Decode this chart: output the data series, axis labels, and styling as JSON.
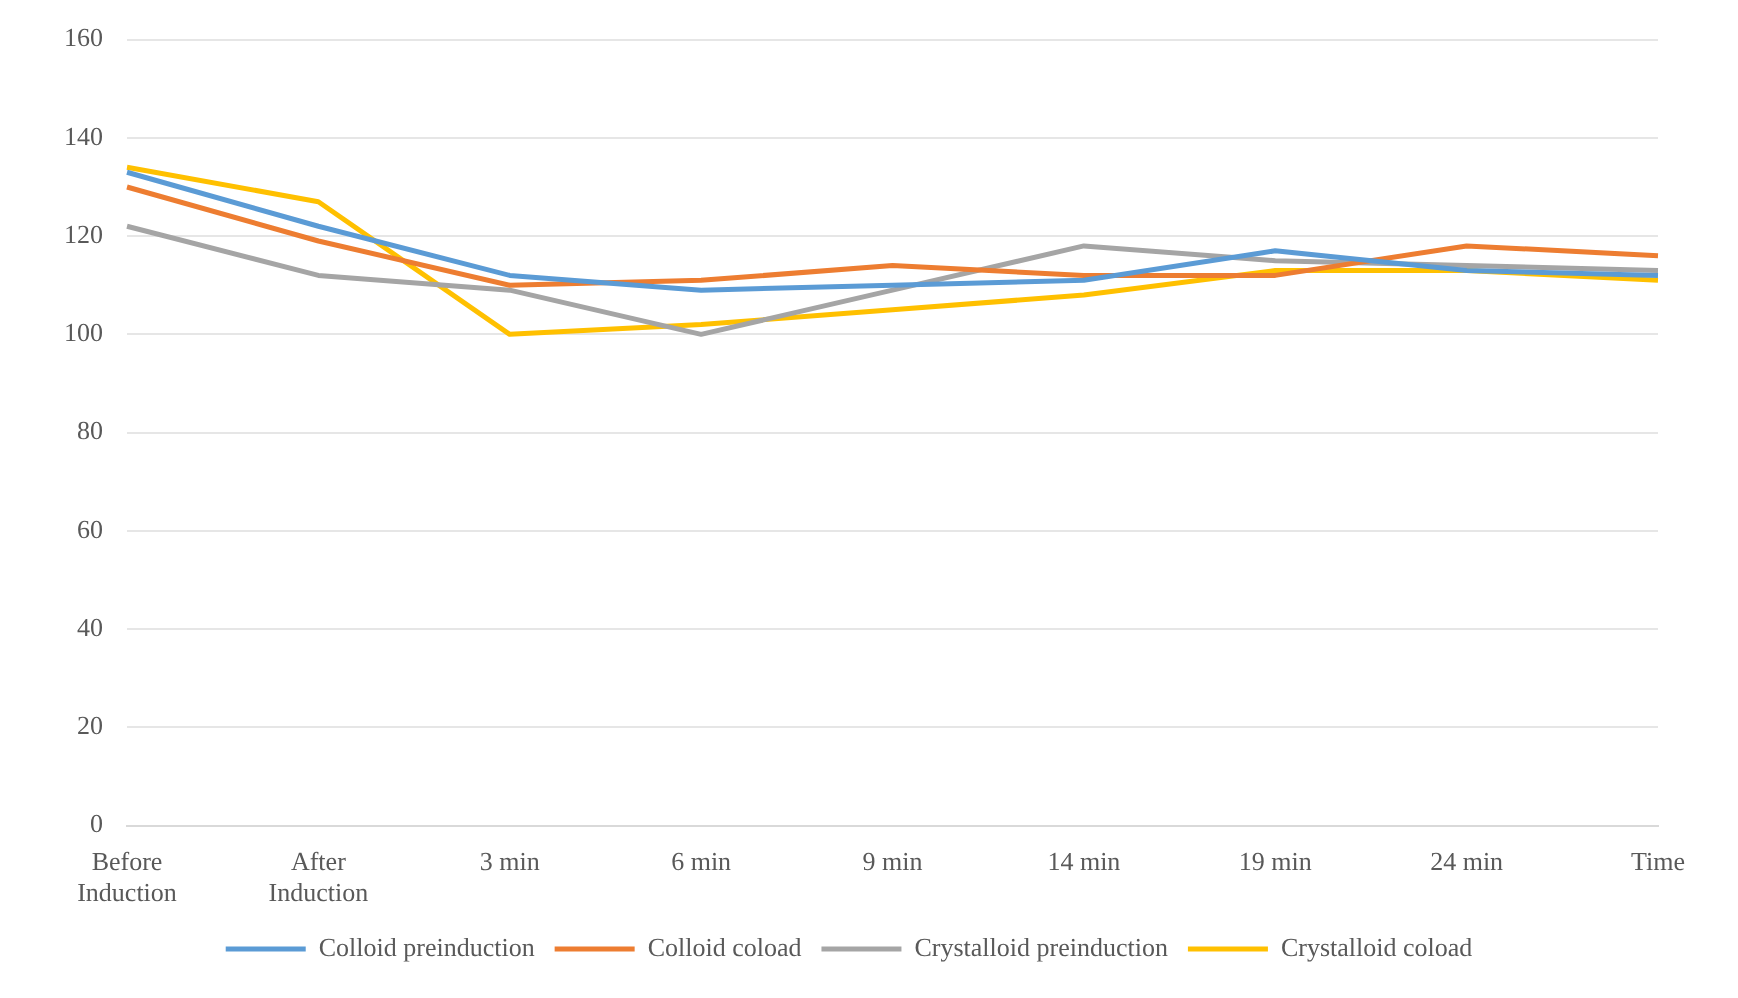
{
  "chart_data": {
    "type": "line",
    "categories": [
      [
        "Before",
        "Induction"
      ],
      [
        "After",
        "Induction"
      ],
      "3 min",
      "6 min",
      "9 min",
      "14 min",
      "19 min",
      "24 min",
      "Time"
    ],
    "series": [
      {
        "name": "Colloid preinduction",
        "color": "#5b9bd5",
        "values": [
          133,
          122,
          112,
          109,
          110,
          111,
          117,
          113,
          112
        ]
      },
      {
        "name": "Colloid coload",
        "color": "#ed7d31",
        "values": [
          130,
          119,
          110,
          111,
          114,
          112,
          112,
          118,
          116
        ]
      },
      {
        "name": "Crystalloid preinduction",
        "color": "#a5a5a5",
        "values": [
          122,
          112,
          109,
          100,
          109,
          118,
          115,
          114,
          113
        ]
      },
      {
        "name": "Crystalloid coload",
        "color": "#ffc000",
        "values": [
          134,
          127,
          100,
          102,
          105,
          108,
          113,
          113,
          111
        ]
      }
    ],
    "ylim": [
      0,
      160
    ],
    "yticks": [
      0,
      20,
      40,
      60,
      80,
      100,
      120,
      140,
      160
    ],
    "grid": "y",
    "legend": "bottom",
    "marker": "none",
    "line_style": "solid"
  }
}
